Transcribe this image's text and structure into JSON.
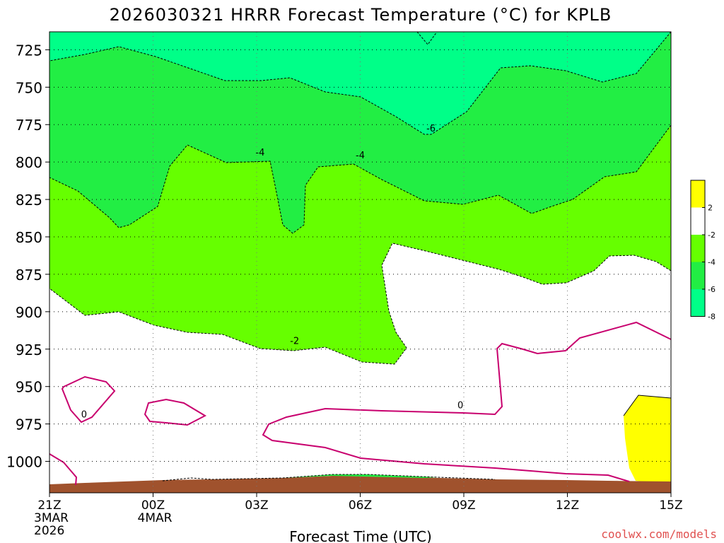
{
  "chart_data": {
    "type": "filled-contour",
    "title": "2026030321 HRRR Forecast Temperature (°C) for KPLB",
    "xlabel": "Forecast Time (UTC)",
    "ylabel": "",
    "credit": "coolwx.com/models",
    "x_hours": [
      0,
      3,
      6,
      9,
      12,
      15,
      18
    ],
    "x_ticks": [
      {
        "hour": 0,
        "lines": [
          "21Z",
          "3MAR",
          "2026"
        ]
      },
      {
        "hour": 3,
        "lines": [
          "00Z",
          "4MAR"
        ]
      },
      {
        "hour": 6,
        "lines": [
          "03Z"
        ]
      },
      {
        "hour": 9,
        "lines": [
          "06Z"
        ]
      },
      {
        "hour": 12,
        "lines": [
          "09Z"
        ]
      },
      {
        "hour": 15,
        "lines": [
          "12Z"
        ]
      },
      {
        "hour": 18,
        "lines": [
          "15Z"
        ]
      }
    ],
    "y_ticks": [
      725,
      750,
      775,
      800,
      825,
      850,
      875,
      900,
      925,
      950,
      975,
      1000
    ],
    "ylim_hpa": [
      713,
      1021
    ],
    "xlim_hours": [
      0,
      18
    ],
    "grid": true,
    "legend": {
      "position": "right",
      "labels": [
        "2",
        "-2",
        "-4",
        "-6",
        "-8"
      ],
      "colors": [
        "#ffff00",
        "#ffffff",
        "#66ff00",
        "#22ee44",
        "#00ff88"
      ]
    },
    "contour_labels": [
      {
        "text": "-6",
        "hour": 11.05,
        "hpa": 778
      },
      {
        "text": "-4",
        "hour": 6.1,
        "hpa": 794
      },
      {
        "text": "-4",
        "hour": 9.0,
        "hpa": 796
      },
      {
        "text": "-2",
        "hour": 7.1,
        "hpa": 920
      },
      {
        "text": "0",
        "hour": 1.0,
        "hpa": 969
      },
      {
        "text": "0",
        "hour": 11.9,
        "hpa": 963
      }
    ],
    "colors": {
      "deg6": "#00ff88",
      "deg4": "#22ee44",
      "deg2": "#66ff00",
      "warm": "#ffff00",
      "ground": "#a0522d",
      "zero_line": "#c8006e"
    }
  }
}
